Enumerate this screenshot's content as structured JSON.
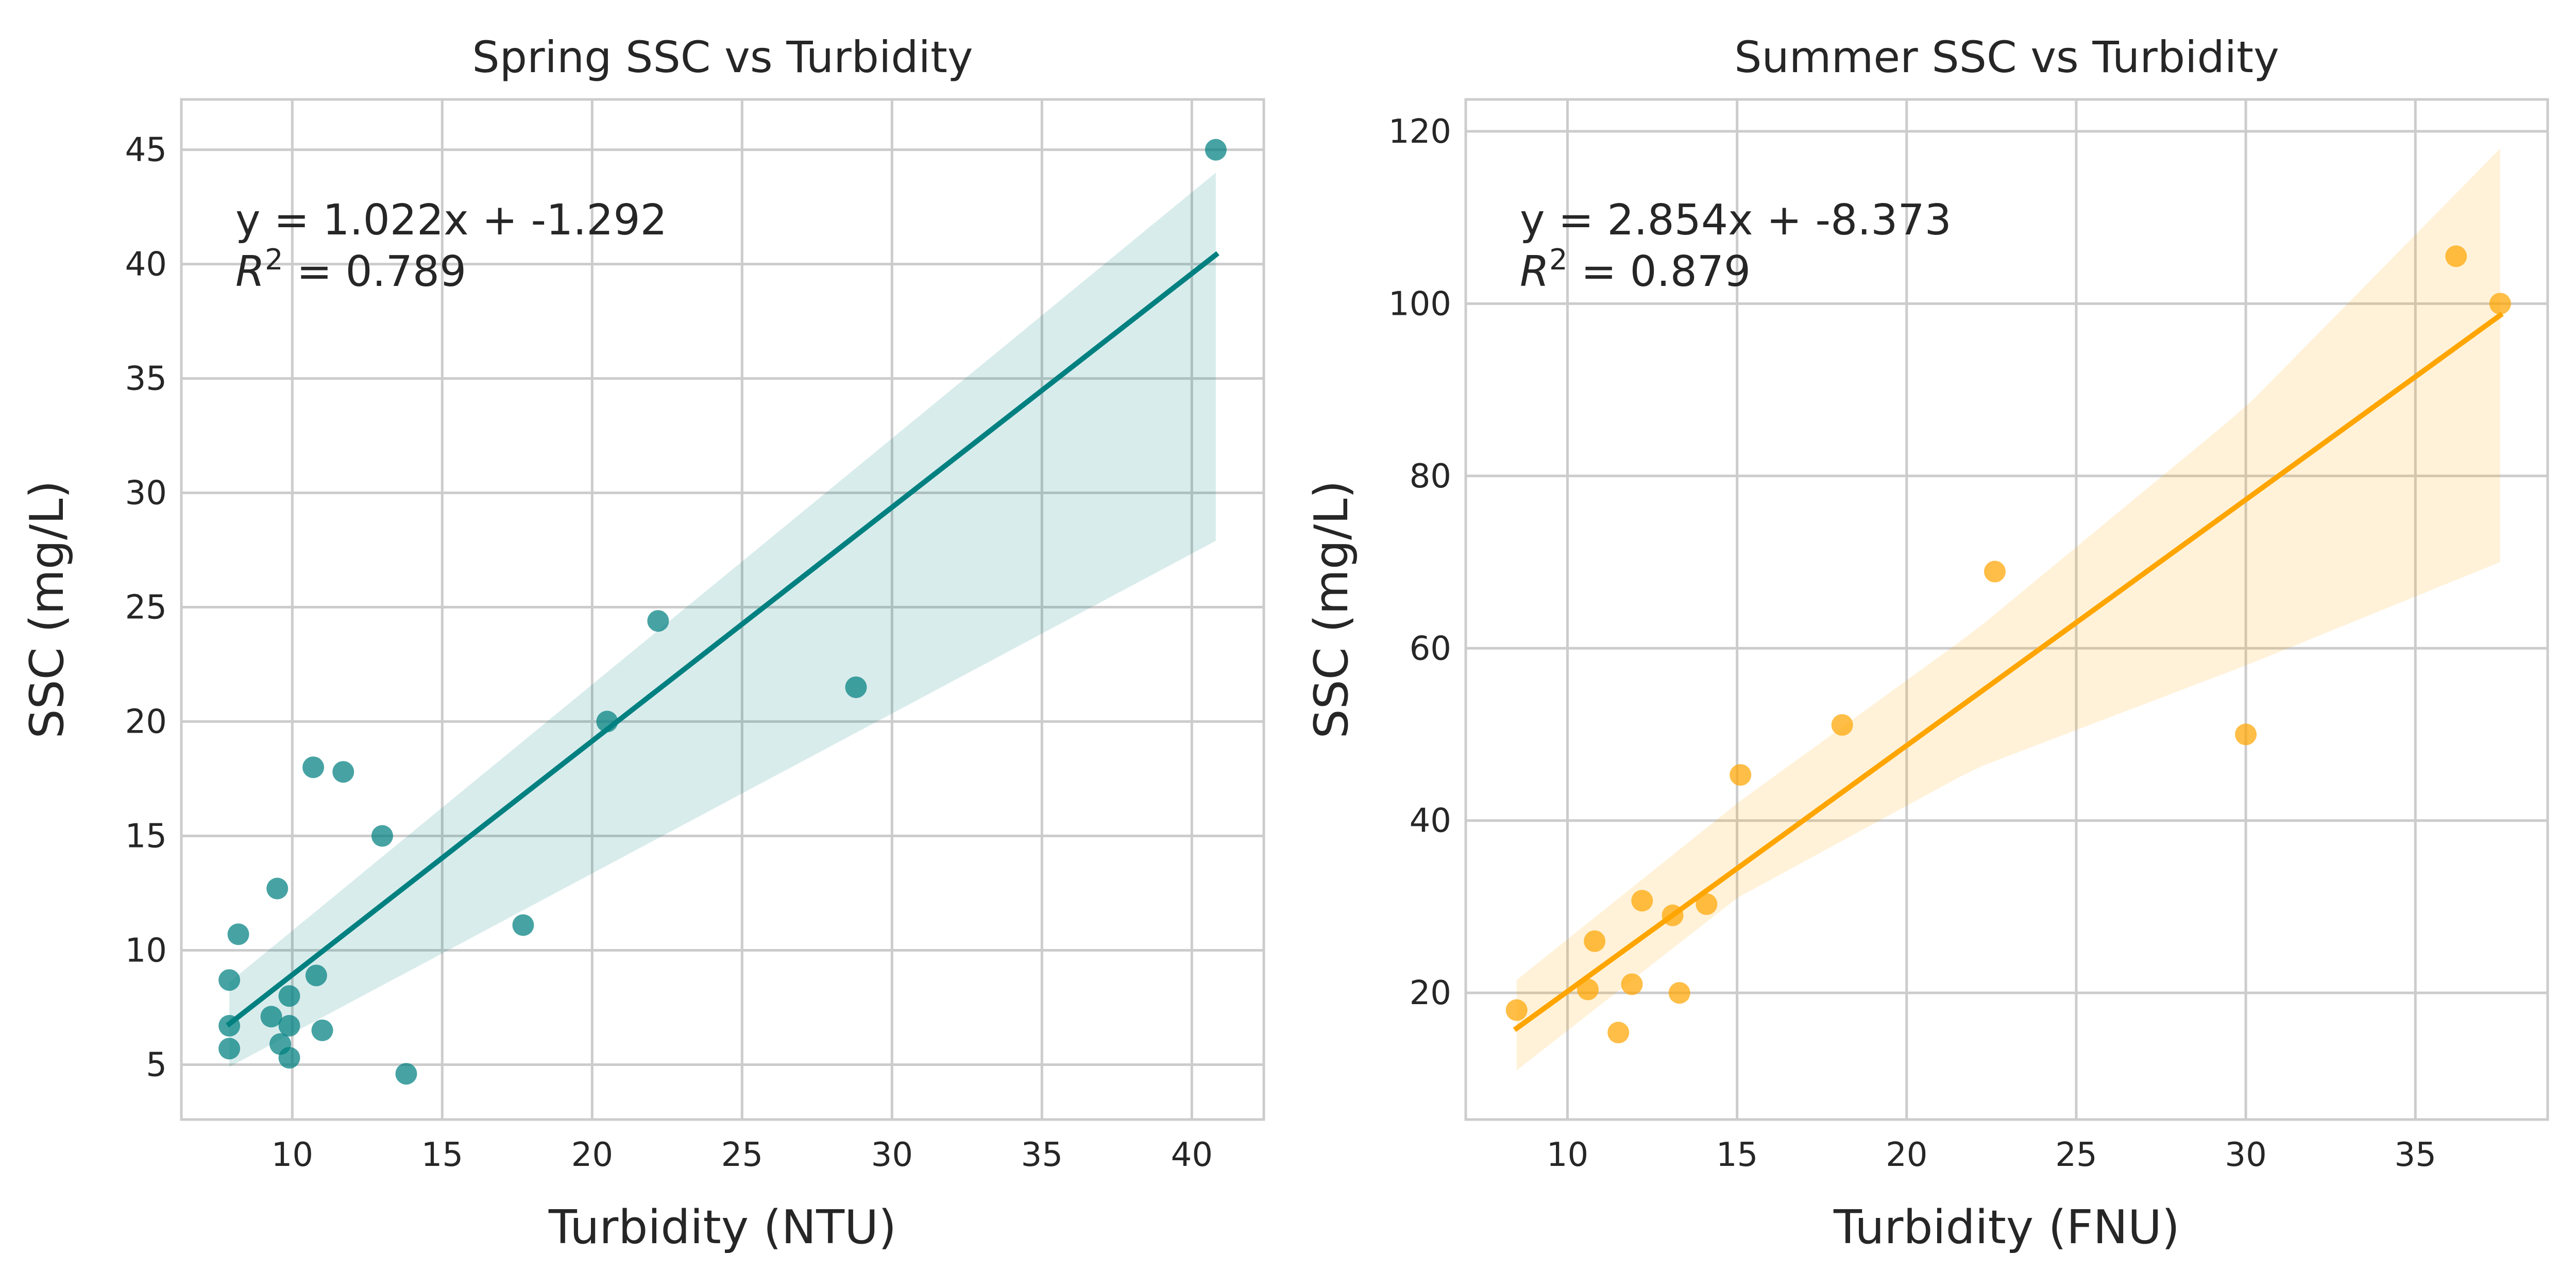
{
  "chart_data": [
    {
      "type": "scatter",
      "title": "Spring SSC vs Turbidity",
      "xlabel": "Turbidity (NTU)",
      "ylabel": "SSC (mg/L)",
      "xlim": [
        6.3,
        42.4
      ],
      "ylim": [
        2.6,
        47.2
      ],
      "xticks": [
        10,
        15,
        20,
        25,
        30,
        35,
        40
      ],
      "yticks": [
        5,
        10,
        15,
        20,
        25,
        30,
        35,
        40,
        45
      ],
      "grid": true,
      "color": "#008080",
      "annotation": {
        "equation": "y = 1.022x + -1.292",
        "r2_label": "R",
        "r2_exp": "2",
        "r2_value": " = 0.789"
      },
      "regression": {
        "slope": 1.022,
        "intercept": -1.292,
        "x_range": [
          7.9,
          40.8
        ]
      },
      "ci_band": {
        "x": [
          7.9,
          40.8
        ],
        "lower": [
          4.9,
          27.9
        ],
        "upper": [
          8.6,
          44.0
        ]
      },
      "points": [
        [
          7.9,
          8.7
        ],
        [
          7.9,
          6.7
        ],
        [
          7.9,
          5.7
        ],
        [
          8.2,
          10.7
        ],
        [
          9.3,
          7.1
        ],
        [
          9.5,
          12.7
        ],
        [
          9.6,
          5.9
        ],
        [
          9.9,
          6.7
        ],
        [
          9.9,
          8.0
        ],
        [
          9.9,
          5.3
        ],
        [
          10.7,
          18.0
        ],
        [
          10.8,
          8.9
        ],
        [
          11.0,
          6.5
        ],
        [
          11.7,
          17.8
        ],
        [
          13.0,
          15.0
        ],
        [
          13.8,
          4.6
        ],
        [
          17.7,
          11.1
        ],
        [
          20.5,
          20.0
        ],
        [
          22.2,
          24.4
        ],
        [
          28.8,
          21.5
        ],
        [
          40.8,
          45.0
        ]
      ]
    },
    {
      "type": "scatter",
      "title": "Summer SSC vs Turbidity",
      "xlabel": "Turbidity (FNU)",
      "ylabel": "SSC (mg/L)",
      "xlim": [
        7.0,
        38.9
      ],
      "ylim": [
        5.3,
        123.7
      ],
      "xticks": [
        10,
        15,
        20,
        25,
        30,
        35
      ],
      "yticks": [
        20,
        40,
        60,
        80,
        100,
        120
      ],
      "grid": true,
      "color": "#FFA500",
      "annotation": {
        "equation": "y = 2.854x + -8.373",
        "r2_label": "R",
        "r2_exp": "2",
        "r2_value": " = 0.879"
      },
      "regression": {
        "slope": 2.854,
        "intercept": -8.373,
        "x_range": [
          8.5,
          37.5
        ]
      },
      "ci_band": {
        "x": [
          8.5,
          15.0,
          22.0,
          30.0,
          37.5
        ],
        "lower": [
          11.0,
          31.0,
          46.0,
          58.0,
          70.0
        ],
        "upper": [
          21.5,
          42.0,
          62.0,
          88.0,
          118.0
        ]
      },
      "points": [
        [
          8.5,
          18.0
        ],
        [
          10.6,
          20.4
        ],
        [
          10.8,
          26.0
        ],
        [
          11.5,
          15.4
        ],
        [
          11.9,
          21.0
        ],
        [
          12.2,
          30.7
        ],
        [
          13.1,
          29.0
        ],
        [
          13.3,
          20.0
        ],
        [
          14.1,
          30.3
        ],
        [
          15.1,
          45.3
        ],
        [
          18.1,
          51.1
        ],
        [
          22.6,
          68.9
        ],
        [
          30.0,
          50.0
        ],
        [
          36.2,
          105.5
        ],
        [
          37.5,
          100.0
        ]
      ]
    }
  ]
}
